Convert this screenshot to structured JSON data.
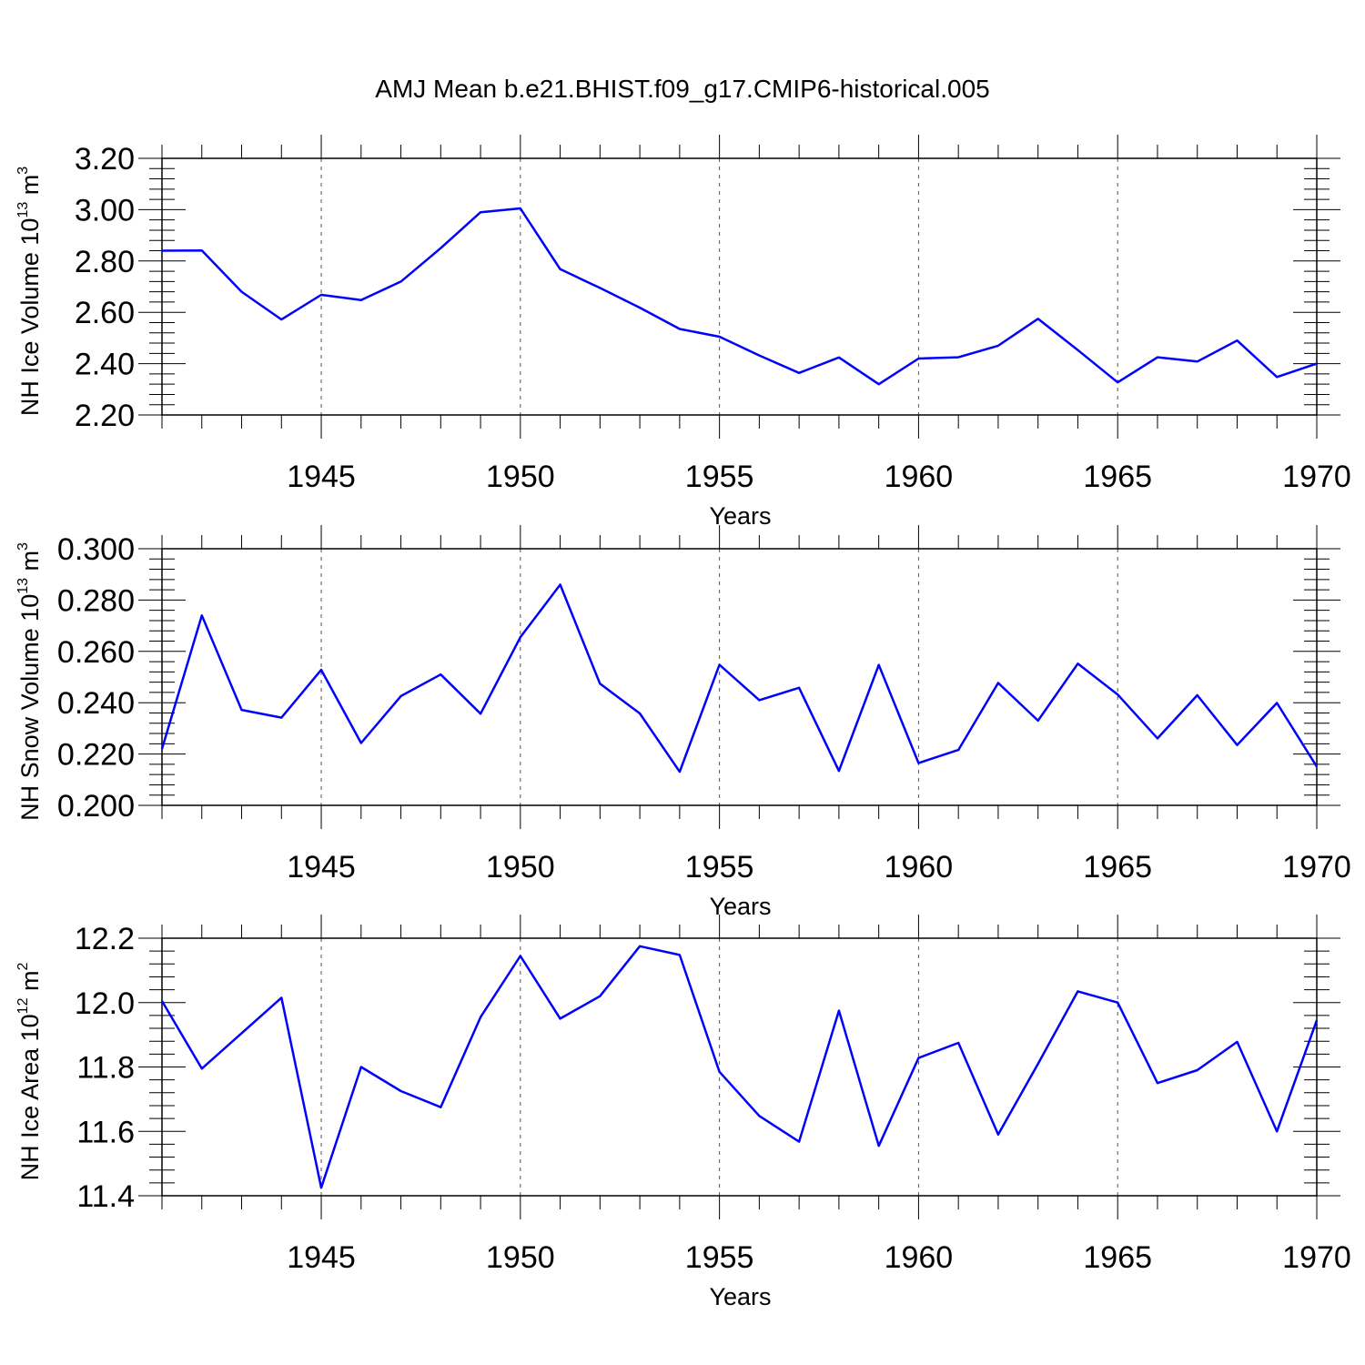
{
  "title": "AMJ Mean b.e21.BHIST.f09_g17.CMIP6-historical.005",
  "line_color": "#0000ff",
  "chart_data": [
    {
      "type": "line",
      "title": "",
      "xlabel": "Years",
      "ylabel_main": "NH Ice Volume 10",
      "ylabel_exp": "13",
      "ylabel_unit": " m",
      "ylabel_unit_exp": "3",
      "xlim": [
        1941,
        1970
      ],
      "ylim": [
        2.2,
        3.2
      ],
      "xticks": [
        1945,
        1950,
        1955,
        1960,
        1965,
        1970
      ],
      "xtick_labels": [
        "1945",
        "1950",
        "1955",
        "1960",
        "1965",
        "1970"
      ],
      "yticks": [
        2.2,
        2.4,
        2.6,
        2.8,
        3.0,
        3.2
      ],
      "ytick_labels": [
        "2.20",
        "2.40",
        "2.60",
        "2.80",
        "3.00",
        "3.20"
      ],
      "grid": "vertical dashed at major x ticks",
      "x": [
        1941,
        1942,
        1943,
        1944,
        1945,
        1946,
        1947,
        1948,
        1949,
        1950,
        1951,
        1952,
        1953,
        1954,
        1955,
        1956,
        1957,
        1958,
        1959,
        1960,
        1961,
        1962,
        1963,
        1964,
        1965,
        1966,
        1967,
        1968,
        1969,
        1970
      ],
      "series": [
        {
          "name": "NH Ice Volume",
          "values": [
            2.84,
            2.841,
            2.68,
            2.572,
            2.668,
            2.648,
            2.72,
            2.85,
            2.99,
            3.005,
            2.768,
            2.695,
            2.618,
            2.535,
            2.505,
            2.432,
            2.364,
            2.424,
            2.32,
            2.42,
            2.425,
            2.47,
            2.575,
            2.453,
            2.327,
            2.425,
            2.408,
            2.49,
            2.348,
            2.4
          ]
        }
      ]
    },
    {
      "type": "line",
      "title": "",
      "xlabel": "Years",
      "ylabel_main": "NH Snow Volume 10",
      "ylabel_exp": "13",
      "ylabel_unit": " m",
      "ylabel_unit_exp": "3",
      "xlim": [
        1941,
        1970
      ],
      "ylim": [
        0.2,
        0.3
      ],
      "xticks": [
        1945,
        1950,
        1955,
        1960,
        1965,
        1970
      ],
      "xtick_labels": [
        "1945",
        "1950",
        "1955",
        "1960",
        "1965",
        "1970"
      ],
      "yticks": [
        0.2,
        0.22,
        0.24,
        0.26,
        0.28,
        0.3
      ],
      "ytick_labels": [
        "0.200",
        "0.220",
        "0.240",
        "0.260",
        "0.280",
        "0.300"
      ],
      "grid": "vertical dashed at major x ticks",
      "x": [
        1941,
        1942,
        1943,
        1944,
        1945,
        1946,
        1947,
        1948,
        1949,
        1950,
        1951,
        1952,
        1953,
        1954,
        1955,
        1956,
        1957,
        1958,
        1959,
        1960,
        1961,
        1962,
        1963,
        1964,
        1965,
        1966,
        1967,
        1968,
        1969,
        1970
      ],
      "series": [
        {
          "name": "NH Snow Volume",
          "values": [
            0.222,
            0.274,
            0.2372,
            0.2342,
            0.2528,
            0.2243,
            0.2426,
            0.251,
            0.2357,
            0.2655,
            0.286,
            0.2474,
            0.2358,
            0.2131,
            0.2548,
            0.241,
            0.2458,
            0.2134,
            0.2547,
            0.2165,
            0.2216,
            0.2477,
            0.233,
            0.2552,
            0.2432,
            0.2261,
            0.2429,
            0.2235,
            0.2399,
            0.2151
          ]
        }
      ]
    },
    {
      "type": "line",
      "title": "",
      "xlabel": "Years",
      "ylabel_main": "NH Ice Area 10",
      "ylabel_exp": "12",
      "ylabel_unit": " m",
      "ylabel_unit_exp": "2",
      "xlim": [
        1941,
        1970
      ],
      "ylim": [
        11.4,
        12.2
      ],
      "xticks": [
        1945,
        1950,
        1955,
        1960,
        1965,
        1970
      ],
      "xtick_labels": [
        "1945",
        "1950",
        "1955",
        "1960",
        "1965",
        "1970"
      ],
      "yticks": [
        11.4,
        11.6,
        11.8,
        12.0,
        12.2
      ],
      "ytick_labels": [
        "11.4",
        "11.6",
        "11.8",
        "12.0",
        "12.2"
      ],
      "grid": "vertical dashed at major x ticks",
      "x": [
        1941,
        1942,
        1943,
        1944,
        1945,
        1946,
        1947,
        1948,
        1949,
        1950,
        1951,
        1952,
        1953,
        1954,
        1955,
        1956,
        1957,
        1958,
        1959,
        1960,
        1961,
        1962,
        1963,
        1964,
        1965,
        1966,
        1967,
        1968,
        1969,
        1970
      ],
      "series": [
        {
          "name": "NH Ice Area",
          "values": [
            12.005,
            11.795,
            11.905,
            12.015,
            11.425,
            11.8,
            11.725,
            11.675,
            11.955,
            12.145,
            11.95,
            12.02,
            12.175,
            12.148,
            11.785,
            11.648,
            11.568,
            11.975,
            11.555,
            11.828,
            11.875,
            11.59,
            11.81,
            12.035,
            12.0,
            11.75,
            11.79,
            11.878,
            11.6,
            11.945
          ]
        }
      ]
    }
  ]
}
